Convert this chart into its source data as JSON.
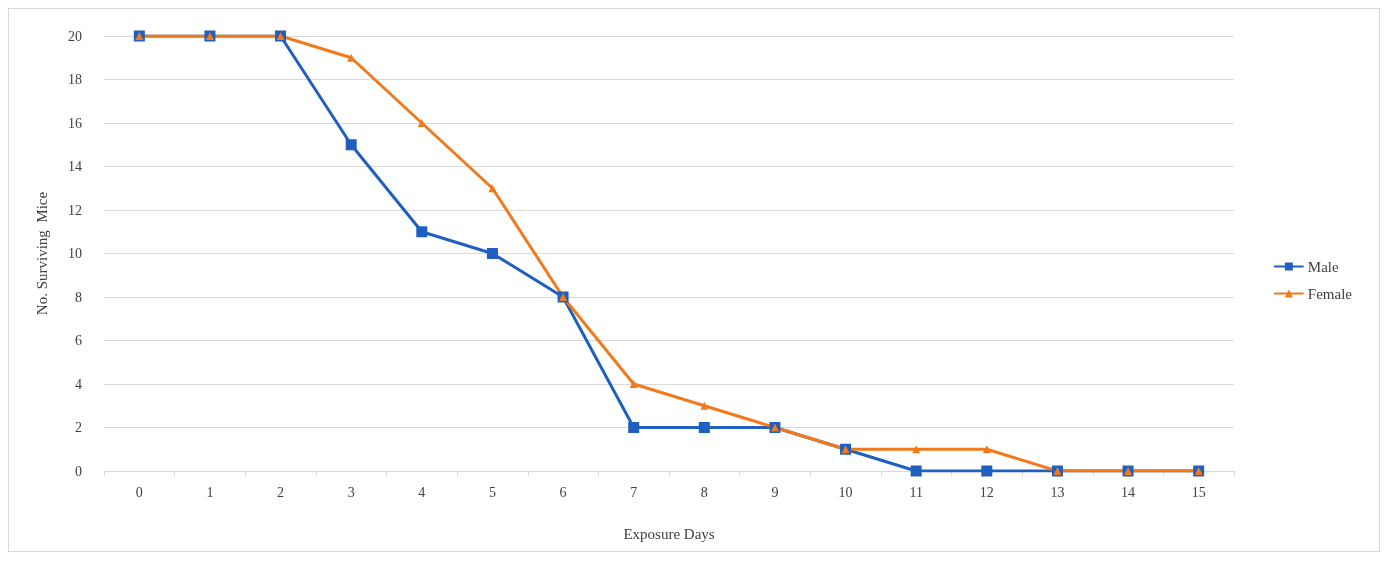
{
  "chart_data": {
    "type": "line",
    "xlabel": "Exposure Days",
    "ylabel": "No. Surviving  Mice",
    "categories": [
      "0",
      "1",
      "2",
      "3",
      "4",
      "5",
      "6",
      "7",
      "8",
      "9",
      "10",
      "11",
      "12",
      "13",
      "14",
      "15"
    ],
    "series": [
      {
        "name": "Male",
        "color": "#1f5fbf",
        "marker": "square",
        "values": [
          20,
          20,
          20,
          15,
          11,
          10,
          8,
          2,
          2,
          2,
          1,
          0,
          0,
          0,
          0,
          0
        ]
      },
      {
        "name": "Female",
        "color": "#f07a1c",
        "marker": "triangle",
        "values": [
          20,
          20,
          20,
          19,
          16,
          13,
          8,
          4,
          3,
          2,
          1,
          1,
          1,
          0,
          0,
          0
        ]
      }
    ],
    "ylim": [
      0,
      20
    ],
    "yticks": [
      0,
      2,
      4,
      6,
      8,
      10,
      12,
      14,
      16,
      18,
      20
    ],
    "grid": "y",
    "legend": "right",
    "line_style": "solid"
  }
}
